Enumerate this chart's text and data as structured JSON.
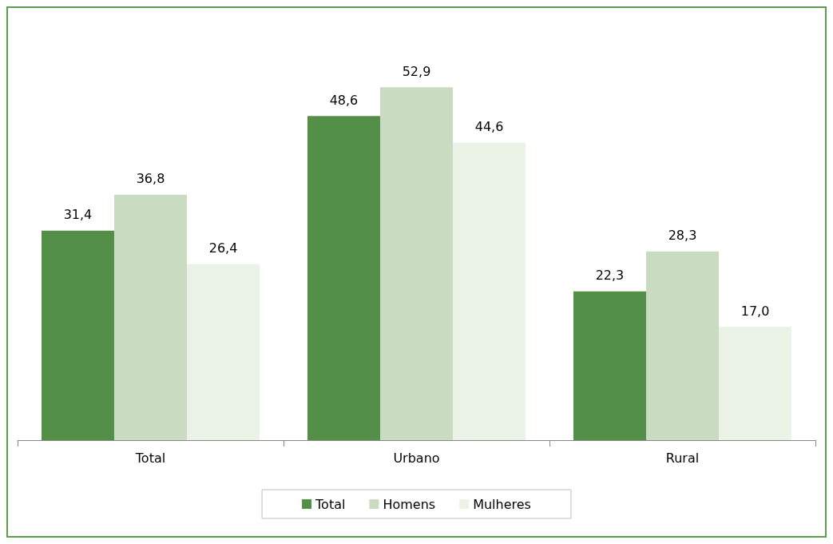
{
  "chart_data": {
    "type": "bar",
    "categories": [
      "Total",
      "Urbano",
      "Rural"
    ],
    "series": [
      {
        "name": "Total",
        "color": "#548f47",
        "values": [
          31.4,
          48.6,
          22.3
        ],
        "value_labels": [
          "31,4",
          "48,6",
          "22,3"
        ]
      },
      {
        "name": "Homens",
        "color": "#c9dbc0",
        "values": [
          36.8,
          52.9,
          28.3
        ],
        "value_labels": [
          "36,8",
          "52,9",
          "28,3"
        ]
      },
      {
        "name": "Mulheres",
        "color": "#ebf3e6",
        "values": [
          26.4,
          44.6,
          17.0
        ],
        "value_labels": [
          "26,4",
          "44,6",
          "17,0"
        ]
      }
    ],
    "legend": "bottom"
  }
}
